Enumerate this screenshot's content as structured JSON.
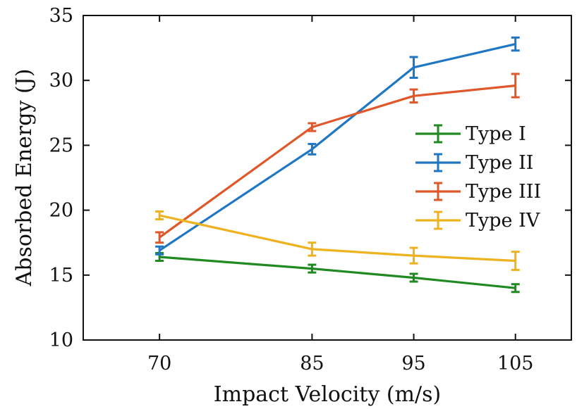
{
  "chart_data": {
    "type": "line",
    "title": "",
    "xlabel": "Impact Velocity (m/s)",
    "ylabel": "Absorbed Energy (J)",
    "x": [
      70,
      85,
      95,
      105
    ],
    "x_tick_labels": [
      "70",
      "85",
      "95",
      "105"
    ],
    "y_ticks": [
      10,
      15,
      20,
      25,
      30,
      35
    ],
    "y_tick_labels": [
      "10",
      "15",
      "20",
      "25",
      "30",
      "35"
    ],
    "ylim": [
      10,
      35
    ],
    "xlim": [
      62.5,
      110.5
    ],
    "grid": false,
    "legend_position": "right",
    "series": [
      {
        "name": "Type I",
        "color": "#1f8a1f",
        "values": [
          16.4,
          15.5,
          14.8,
          14.0
        ],
        "errors": [
          0.3,
          0.3,
          0.3,
          0.3
        ]
      },
      {
        "name": "Type II",
        "color": "#1f77c4",
        "values": [
          16.9,
          24.7,
          31.0,
          32.8
        ],
        "errors": [
          0.3,
          0.4,
          0.8,
          0.5
        ]
      },
      {
        "name": "Type III",
        "color": "#e0582a",
        "values": [
          17.9,
          26.4,
          28.8,
          29.6
        ],
        "errors": [
          0.4,
          0.3,
          0.5,
          0.9
        ]
      },
      {
        "name": "Type IV",
        "color": "#efb21f",
        "values": [
          19.6,
          17.0,
          16.5,
          16.1
        ],
        "errors": [
          0.3,
          0.5,
          0.6,
          0.7
        ]
      }
    ]
  }
}
